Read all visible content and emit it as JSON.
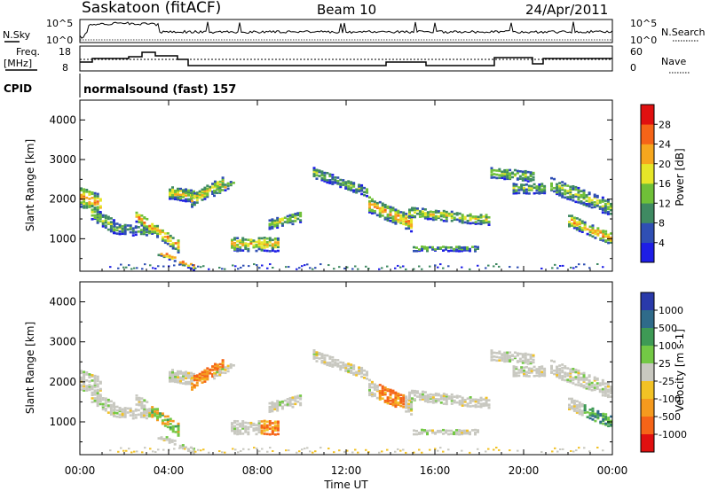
{
  "header": {
    "station": "Saskatoon (fitACF)",
    "beam": "Beam 10",
    "date": "24/Apr/2011"
  },
  "sky_panel": {
    "left_label": "N.Sky",
    "left_ticks": [
      "10^5",
      "10^0"
    ],
    "right_label": "N.Search",
    "right_ticks": [
      "10^5",
      "10^0"
    ]
  },
  "freq_panel": {
    "left_label_1": "Freq.",
    "left_label_2": "[MHz]",
    "left_ticks": [
      "18",
      "8"
    ],
    "right_label": "Nave",
    "right_ticks": [
      "60",
      "0"
    ]
  },
  "cpid": {
    "label": "CPID",
    "value": "normalsound (fast) 157"
  },
  "chart_data": [
    {
      "type": "heatmap",
      "title": "Power",
      "ylabel": "Slant Range [km]",
      "y_ticks": [
        "1000",
        "2000",
        "3000",
        "4000"
      ],
      "ylim": [
        180,
        4500
      ],
      "colorbar_label": "Power [dB]",
      "colorbar_ticks": [
        "4",
        "8",
        "12",
        "16",
        "20",
        "24",
        "28"
      ],
      "colorbar_colors": [
        "#1e1ee6",
        "#2f4fb4",
        "#3f8a62",
        "#6fc038",
        "#e6e628",
        "#f6a71e",
        "#f56418",
        "#e01010"
      ]
    },
    {
      "type": "heatmap",
      "title": "Velocity",
      "ylabel": "Slant Range [km]",
      "y_ticks": [
        "1000",
        "2000",
        "3000",
        "4000"
      ],
      "ylim": [
        180,
        4500
      ],
      "xlabel": "Time UT",
      "x_ticks": [
        "00:00",
        "04:00",
        "08:00",
        "12:00",
        "16:00",
        "20:00",
        "00:00"
      ],
      "colorbar_label": "Velocity [m s-1]",
      "colorbar_ticks": [
        "1000",
        "500",
        "100",
        "25",
        "-25",
        "-100",
        "-500",
        "-1000"
      ],
      "colorbar_colors": [
        "#2a3aaa",
        "#2f6b8a",
        "#3e9a55",
        "#73c845",
        "#c8c8c0",
        "#f2c225",
        "#f59a1e",
        "#f56418",
        "#e01010"
      ]
    }
  ]
}
